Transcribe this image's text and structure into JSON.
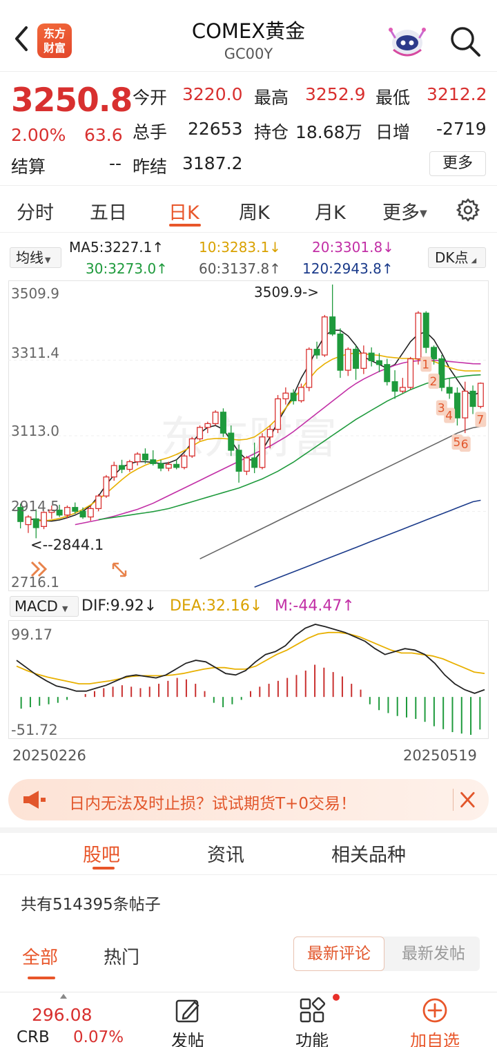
{
  "header": {
    "title": "COMEX黄金",
    "subtitle": "GC00Y",
    "logo_text": [
      "东方",
      "财富"
    ]
  },
  "quote": {
    "price": "3250.8",
    "pct": "2.00%",
    "change": "63.6",
    "fields": [
      {
        "label": "今开",
        "value": "3220.0",
        "color": "red"
      },
      {
        "label": "最高",
        "value": "3252.9",
        "color": "red"
      },
      {
        "label": "最低",
        "value": "3212.2",
        "color": "red"
      },
      {
        "label": "总手",
        "value": "22653",
        "color": "black"
      },
      {
        "label": "持仓",
        "value": "18.68万",
        "color": "black"
      },
      {
        "label": "日增",
        "value": "-2719",
        "color": "black"
      },
      {
        "label": "结算",
        "value": "--",
        "color": "black"
      },
      {
        "label": "昨结",
        "value": "3187.2",
        "color": "black"
      }
    ],
    "more_label": "更多"
  },
  "chart_tabs": [
    "分时",
    "五日",
    "日K",
    "周K",
    "月K",
    "更多"
  ],
  "active_chart_tab": "日K",
  "ma_bar": {
    "selector": "均线",
    "items": [
      {
        "text": "MA5:3227.1↑",
        "color": "#222222"
      },
      {
        "text": "10:3283.1↓",
        "color": "#d9a100"
      },
      {
        "text": "20:3301.8↓",
        "color": "#c22fa6"
      },
      {
        "text": "30:3273.0↑",
        "color": "#1e9a3c"
      },
      {
        "text": "60:3137.8↑",
        "color": "#555555"
      },
      {
        "text": "120:2943.8↑",
        "color": "#1a3a8a"
      }
    ],
    "dk_label": "DK点"
  },
  "kline": {
    "y_labels": [
      "3509.9",
      "3311.4",
      "3113.0",
      "2914.5",
      "2716.1"
    ],
    "high_annotation": "3509.9->",
    "low_annotation": "<--2844.1",
    "dk_markers": [
      "1",
      "2",
      "3",
      "4",
      "5",
      "6",
      "7"
    ]
  },
  "macd": {
    "selector": "MACD",
    "dif": "DIF:9.92↓",
    "dea": "DEA:32.16↓",
    "m": "M:-44.47↑",
    "y_top": "99.17",
    "y_bottom": "-51.72",
    "date_start": "20250226",
    "date_end": "20250519"
  },
  "chart_data": {
    "type": "candlestick",
    "title": "COMEX黄金 日K",
    "ylim": [
      2716.1,
      3509.9
    ],
    "date_range": [
      "20250226",
      "20250519"
    ],
    "candles": [
      {
        "o": 2925,
        "h": 2935,
        "l": 2870,
        "c": 2888
      },
      {
        "o": 2880,
        "h": 2905,
        "l": 2858,
        "c": 2900
      },
      {
        "o": 2895,
        "h": 2920,
        "l": 2844.1,
        "c": 2872
      },
      {
        "o": 2875,
        "h": 2915,
        "l": 2868,
        "c": 2912
      },
      {
        "o": 2912,
        "h": 2930,
        "l": 2895,
        "c": 2918
      },
      {
        "o": 2918,
        "h": 2932,
        "l": 2900,
        "c": 2905
      },
      {
        "o": 2905,
        "h": 2930,
        "l": 2896,
        "c": 2925
      },
      {
        "o": 2925,
        "h": 2938,
        "l": 2908,
        "c": 2915
      },
      {
        "o": 2915,
        "h": 2925,
        "l": 2895,
        "c": 2900
      },
      {
        "o": 2900,
        "h": 2930,
        "l": 2890,
        "c": 2922
      },
      {
        "o": 2922,
        "h": 2960,
        "l": 2915,
        "c": 2955
      },
      {
        "o": 2955,
        "h": 3010,
        "l": 2950,
        "c": 3005
      },
      {
        "o": 3005,
        "h": 3045,
        "l": 2995,
        "c": 3035
      },
      {
        "o": 3035,
        "h": 3050,
        "l": 3015,
        "c": 3025
      },
      {
        "o": 3025,
        "h": 3050,
        "l": 3018,
        "c": 3045
      },
      {
        "o": 3045,
        "h": 3070,
        "l": 3035,
        "c": 3065
      },
      {
        "o": 3065,
        "h": 3080,
        "l": 3040,
        "c": 3050
      },
      {
        "o": 3050,
        "h": 3075,
        "l": 3035,
        "c": 3040
      },
      {
        "o": 3040,
        "h": 3050,
        "l": 3020,
        "c": 3028
      },
      {
        "o": 3028,
        "h": 3045,
        "l": 3020,
        "c": 3038
      },
      {
        "o": 3038,
        "h": 3050,
        "l": 3025,
        "c": 3030
      },
      {
        "o": 3030,
        "h": 3065,
        "l": 3025,
        "c": 3060
      },
      {
        "o": 3060,
        "h": 3110,
        "l": 3055,
        "c": 3105
      },
      {
        "o": 3105,
        "h": 3140,
        "l": 3100,
        "c": 3135
      },
      {
        "o": 3135,
        "h": 3150,
        "l": 3120,
        "c": 3145
      },
      {
        "o": 3145,
        "h": 3180,
        "l": 3140,
        "c": 3175
      },
      {
        "o": 3175,
        "h": 3185,
        "l": 3110,
        "c": 3120
      },
      {
        "o": 3120,
        "h": 3140,
        "l": 3060,
        "c": 3075
      },
      {
        "o": 3075,
        "h": 3090,
        "l": 2990,
        "c": 3020
      },
      {
        "o": 3020,
        "h": 3060,
        "l": 3010,
        "c": 3055
      },
      {
        "o": 3055,
        "h": 3095,
        "l": 3015,
        "c": 3030
      },
      {
        "o": 3030,
        "h": 3120,
        "l": 3025,
        "c": 3110
      },
      {
        "o": 3110,
        "h": 3140,
        "l": 3080,
        "c": 3130
      },
      {
        "o": 3130,
        "h": 3220,
        "l": 3120,
        "c": 3210
      },
      {
        "o": 3210,
        "h": 3240,
        "l": 3195,
        "c": 3225
      },
      {
        "o": 3225,
        "h": 3235,
        "l": 3195,
        "c": 3205
      },
      {
        "o": 3205,
        "h": 3250,
        "l": 3200,
        "c": 3240
      },
      {
        "o": 3240,
        "h": 3345,
        "l": 3230,
        "c": 3340
      },
      {
        "o": 3340,
        "h": 3360,
        "l": 3315,
        "c": 3325
      },
      {
        "o": 3325,
        "h": 3430,
        "l": 3320,
        "c": 3425
      },
      {
        "o": 3425,
        "h": 3509.9,
        "l": 3375,
        "c": 3380
      },
      {
        "o": 3380,
        "h": 3395,
        "l": 3265,
        "c": 3285
      },
      {
        "o": 3285,
        "h": 3345,
        "l": 3270,
        "c": 3340
      },
      {
        "o": 3340,
        "h": 3350,
        "l": 3260,
        "c": 3290
      },
      {
        "o": 3290,
        "h": 3350,
        "l": 3275,
        "c": 3330
      },
      {
        "o": 3330,
        "h": 3345,
        "l": 3295,
        "c": 3310
      },
      {
        "o": 3310,
        "h": 3330,
        "l": 3280,
        "c": 3300
      },
      {
        "o": 3300,
        "h": 3315,
        "l": 3245,
        "c": 3255
      },
      {
        "o": 3255,
        "h": 3285,
        "l": 3210,
        "c": 3230
      },
      {
        "o": 3230,
        "h": 3265,
        "l": 3225,
        "c": 3240
      },
      {
        "o": 3240,
        "h": 3320,
        "l": 3235,
        "c": 3315
      },
      {
        "o": 3315,
        "h": 3440,
        "l": 3300,
        "c": 3435
      },
      {
        "o": 3435,
        "h": 3440,
        "l": 3330,
        "c": 3345
      },
      {
        "o": 3345,
        "h": 3350,
        "l": 3300,
        "c": 3315
      },
      {
        "o": 3315,
        "h": 3325,
        "l": 3230,
        "c": 3240
      },
      {
        "o": 3240,
        "h": 3265,
        "l": 3210,
        "c": 3225
      },
      {
        "o": 3225,
        "h": 3240,
        "l": 3140,
        "c": 3160
      },
      {
        "o": 3160,
        "h": 3255,
        "l": 3120,
        "c": 3230
      },
      {
        "o": 3230,
        "h": 3245,
        "l": 3170,
        "c": 3190
      },
      {
        "o": 3190,
        "h": 3252.9,
        "l": 3185,
        "c": 3250.8
      }
    ],
    "moving_averages": [
      {
        "name": "MA5",
        "color": "#222222",
        "values": [
          2895,
          2893,
          2890,
          2889,
          2892,
          2898,
          2905,
          2915,
          2930,
          2955,
          2985,
          3010,
          3030,
          3040,
          3045,
          3045,
          3043,
          3040,
          3042,
          3050,
          3070,
          3095,
          3120,
          3135,
          3140,
          3130,
          3100,
          3070,
          3050,
          3050,
          3075,
          3110,
          3150,
          3185,
          3220,
          3265,
          3300,
          3340,
          3375,
          3390,
          3390,
          3375,
          3350,
          3320,
          3310,
          3300,
          3290,
          3300,
          3330,
          3360,
          3380,
          3385,
          3365,
          3330,
          3290,
          3260,
          3230,
          3220,
          3227.1
        ]
      },
      {
        "name": "10",
        "color": "#e8b000",
        "values": [
          2890,
          2890,
          2892,
          2896,
          2902,
          2910,
          2920,
          2932,
          2946,
          2962,
          2980,
          2998,
          3014,
          3026,
          3036,
          3044,
          3050,
          3056,
          3064,
          3074,
          3086,
          3098,
          3104,
          3106,
          3106,
          3104,
          3102,
          3104,
          3110,
          3124,
          3140,
          3160,
          3186,
          3210,
          3236,
          3262,
          3286,
          3302,
          3314,
          3322,
          3328,
          3330,
          3328,
          3326,
          3324,
          3320,
          3318,
          3316,
          3316,
          3314,
          3312,
          3308,
          3300,
          3292,
          3286,
          3283.1,
          3283.1,
          3283.1
        ]
      },
      {
        "name": "20",
        "color": "#c22fa6",
        "values": [
          2880,
          2884,
          2888,
          2892,
          2897,
          2902,
          2908,
          2914,
          2920,
          2928,
          2936,
          2946,
          2956,
          2966,
          2976,
          2986,
          2996,
          3006,
          3016,
          3026,
          3036,
          3046,
          3056,
          3066,
          3076,
          3086,
          3098,
          3110,
          3124,
          3140,
          3156,
          3172,
          3188,
          3204,
          3220,
          3236,
          3250,
          3262,
          3272,
          3282,
          3290,
          3298,
          3304,
          3308,
          3310,
          3311,
          3311,
          3310,
          3308,
          3306,
          3304,
          3302,
          3301.8
        ]
      },
      {
        "name": "30",
        "color": "#1e9a3c",
        "values": [
          2893,
          2896,
          2899,
          2902,
          2905,
          2908,
          2911,
          2914,
          2918,
          2922,
          2928,
          2934,
          2940,
          2946,
          2952,
          2958,
          2964,
          2970,
          2976,
          2984,
          2992,
          3000,
          3010,
          3020,
          3032,
          3044,
          3058,
          3072,
          3086,
          3100,
          3114,
          3128,
          3142,
          3156,
          3168,
          3180,
          3192,
          3204,
          3214,
          3224,
          3234,
          3242,
          3250,
          3256,
          3260,
          3264,
          3267,
          3270,
          3272,
          3273.0
        ]
      },
      {
        "name": "60",
        "color": "#666666",
        "values": [
          2790,
          2800,
          2810,
          2820,
          2830,
          2840,
          2850,
          2860,
          2870,
          2880,
          2890,
          2900,
          2910,
          2920,
          2930,
          2940,
          2950,
          2960,
          2970,
          2980,
          2990,
          3000,
          3010,
          3020,
          3030,
          3040,
          3050,
          3060,
          3070,
          3080,
          3090,
          3100,
          3110,
          3120,
          3128,
          3134,
          3137.8
        ]
      },
      {
        "name": "120",
        "color": "#1a3a8a",
        "values": [
          2716,
          2724,
          2732,
          2740,
          2748,
          2756,
          2764,
          2772,
          2780,
          2788,
          2796,
          2804,
          2812,
          2820,
          2828,
          2836,
          2844,
          2852,
          2860,
          2868,
          2876,
          2884,
          2892,
          2900,
          2908,
          2916,
          2924,
          2932,
          2940,
          2943.8
        ]
      }
    ],
    "macd": {
      "ylim": [
        -51.72,
        99.17
      ],
      "dif": [
        50,
        40,
        30,
        22,
        15,
        12,
        8,
        8,
        12,
        16,
        22,
        28,
        30,
        28,
        26,
        30,
        38,
        46,
        50,
        48,
        40,
        32,
        30,
        36,
        48,
        58,
        62,
        70,
        84,
        94,
        99.17,
        96,
        92,
        88,
        82,
        76,
        66,
        58,
        62,
        66,
        64,
        58,
        46,
        30,
        18,
        10,
        5,
        9.92
      ],
      "dea": [
        42,
        36,
        31,
        27,
        24,
        21,
        18,
        18,
        20,
        22,
        25,
        28,
        29,
        29,
        29,
        30,
        32,
        35,
        38,
        40,
        40,
        38,
        38,
        42,
        50,
        58,
        64,
        72,
        80,
        86,
        88,
        88,
        86,
        82,
        76,
        70,
        64,
        60,
        60,
        58,
        56,
        52,
        46,
        40,
        34,
        32.16
      ],
      "m": [
        -16,
        -14,
        -12,
        -10,
        -8,
        -4,
        0,
        4,
        8,
        12,
        14,
        16,
        14,
        12,
        14,
        18,
        22,
        26,
        24,
        18,
        8,
        -8,
        -14,
        -10,
        -4,
        8,
        14,
        18,
        22,
        26,
        30,
        36,
        44,
        40,
        34,
        28,
        18,
        10,
        -10,
        -18,
        -22,
        -26,
        -28,
        -30,
        -34,
        -40,
        -44,
        -48,
        -50,
        -51.72,
        -44.47
      ]
    }
  },
  "banner": {
    "text": "日内无法及时止损？试试期货T+0交易！"
  },
  "community": {
    "tabs": [
      "股吧",
      "资讯",
      "相关品种"
    ],
    "active_tab": "股吧",
    "post_count": "共有514395条帖子",
    "filter_tabs": [
      "全部",
      "热门"
    ],
    "active_filter": "全部",
    "sort": [
      "最新评论",
      "最新发帖"
    ],
    "active_sort": "最新评论"
  },
  "bottom_bar": {
    "ticker_value": "296.08",
    "ticker_name": "CRB",
    "ticker_pct": "0.07%",
    "actions": [
      "发帖",
      "功能",
      "加自选"
    ]
  },
  "colors": {
    "up": "#d8302f",
    "down": "#1e9a3c",
    "accent": "#e8562a"
  }
}
